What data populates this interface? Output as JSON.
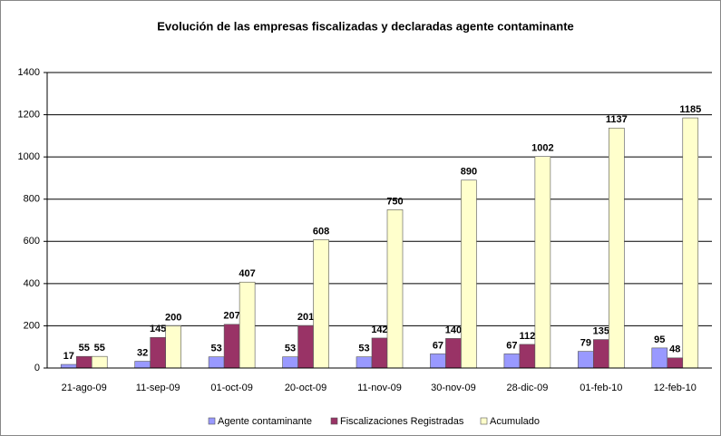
{
  "chart_data": {
    "type": "bar",
    "title": "Evolución de las empresas fiscalizadas y declaradas agente contaminante",
    "categories": [
      "21-ago-09",
      "11-sep-09",
      "01-oct-09",
      "20-oct-09",
      "11-nov-09",
      "30-nov-09",
      "28-dic-09",
      "01-feb-10",
      "12-feb-10"
    ],
    "series": [
      {
        "name": "Agente contaminante",
        "color": "#9999ff",
        "values": [
          17,
          32,
          53,
          53,
          53,
          67,
          67,
          79,
          95
        ]
      },
      {
        "name": "Fiscalizaciones Registradas",
        "color": "#993366",
        "values": [
          55,
          145,
          207,
          201,
          142,
          140,
          112,
          135,
          48
        ]
      },
      {
        "name": "Acumulado",
        "color": "#ffffcc",
        "values": [
          55,
          200,
          407,
          608,
          750,
          890,
          1002,
          1137,
          1185
        ]
      }
    ],
    "ylim": [
      0,
      1400
    ],
    "yticks": [
      0,
      200,
      400,
      600,
      800,
      1000,
      1200,
      1400
    ],
    "grid": true,
    "legend": "bottom"
  }
}
